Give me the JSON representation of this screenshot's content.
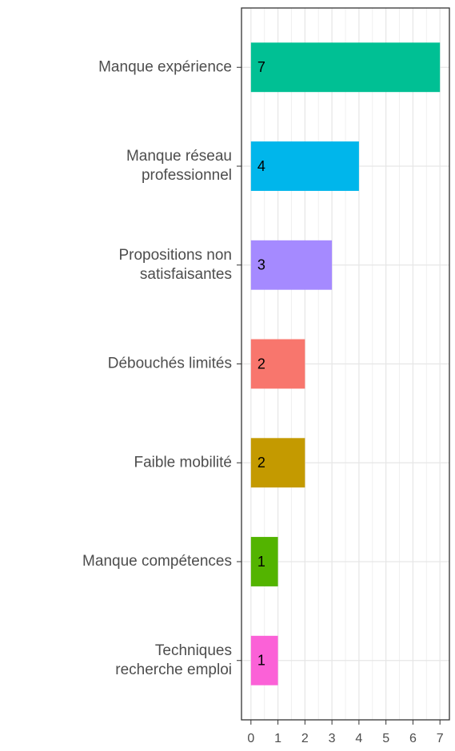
{
  "chart_data": {
    "type": "bar",
    "orientation": "horizontal",
    "categories": [
      "Manque expérience",
      "Manque réseau\nprofessionnel",
      "Propositions non\nsatisfaisantes",
      "Débouchés limités",
      "Faible mobilité",
      "Manque compétences",
      "Techniques\nrecherche emploi"
    ],
    "values": [
      7,
      4,
      3,
      2,
      2,
      1,
      1
    ],
    "colors": [
      "#00C094",
      "#00B6EB",
      "#A58AFF",
      "#F8766D",
      "#C49A00",
      "#53B400",
      "#FB61D7"
    ],
    "xlim": [
      -0.35,
      7.35
    ],
    "xticks": [
      0,
      1,
      2,
      3,
      4,
      5,
      6,
      7
    ],
    "grid": true
  }
}
